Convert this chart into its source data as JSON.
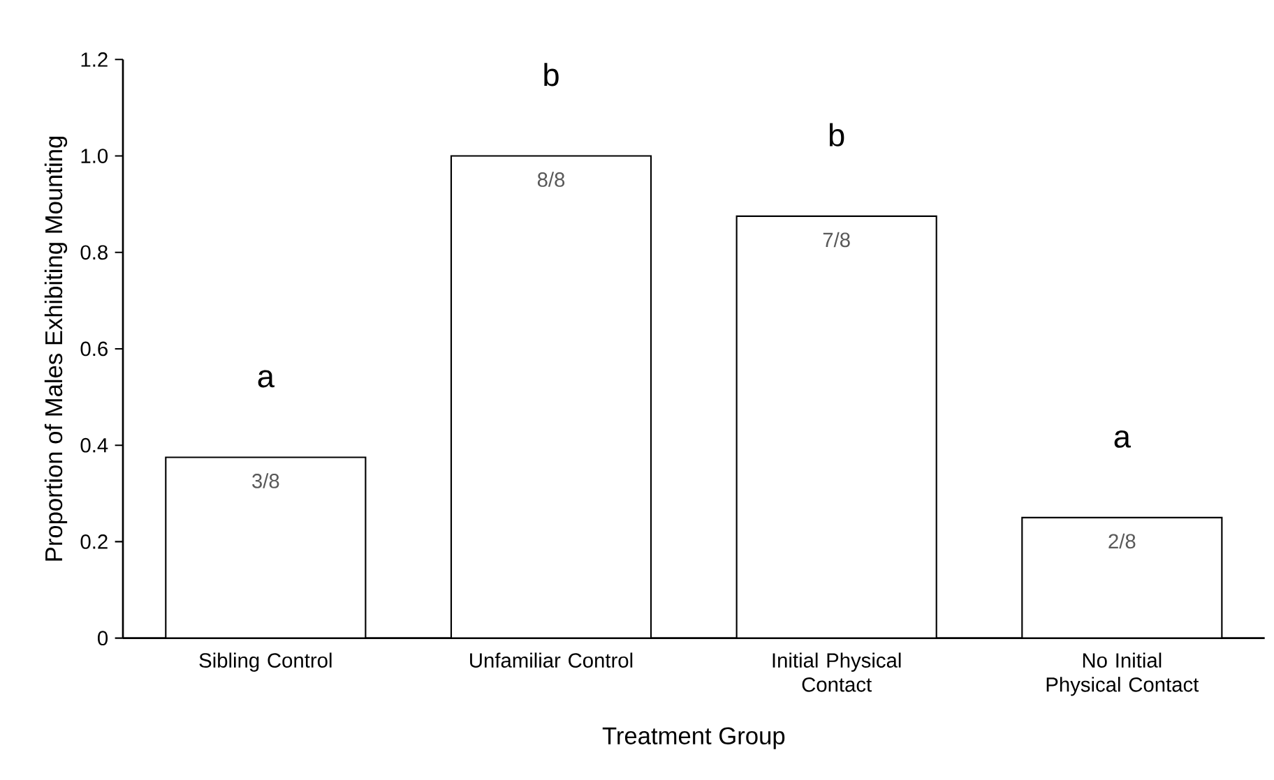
{
  "chart_data": {
    "type": "bar",
    "xlabel": "Treatment Group",
    "ylabel": "Proportion of Males Exhibiting Mounting",
    "categories": [
      "Sibling Control",
      "Unfamiliar Control",
      "Initial Physical Contact",
      "No Initial Physical Contact"
    ],
    "values": [
      0.375,
      1.0,
      0.875,
      0.25
    ],
    "value_labels": [
      "3/8",
      "8/8",
      "7/8",
      "2/8"
    ],
    "color": "#ffffff",
    "ylim": [
      0,
      1.2
    ],
    "yticks": [
      0,
      0.2,
      0.4,
      0.6,
      0.8,
      {
        "value": 1,
        "label": "1.0"
      },
      1.2
    ],
    "annotations": [
      "a",
      "b",
      "b",
      "a"
    ]
  }
}
